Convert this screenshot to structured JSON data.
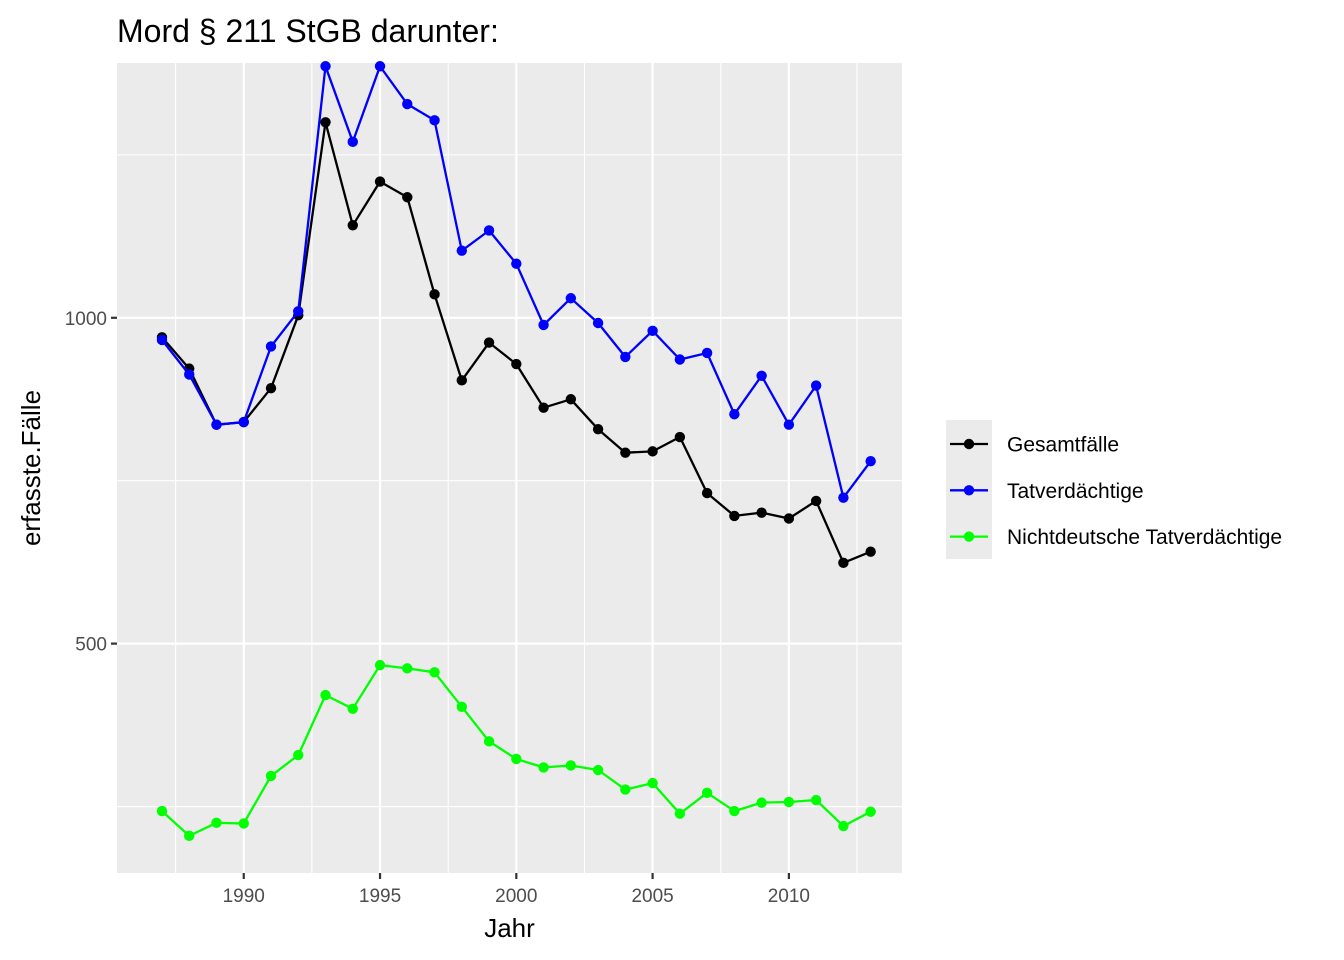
{
  "chart_data": {
    "type": "line",
    "title": "Mord § 211 StGB darunter:",
    "xlabel": "Jahr",
    "ylabel": "erfasste.Fälle",
    "x": [
      1987,
      1988,
      1989,
      1990,
      1991,
      1992,
      1993,
      1994,
      1995,
      1996,
      1997,
      1998,
      1999,
      2000,
      2001,
      2002,
      2003,
      2004,
      2005,
      2006,
      2007,
      2008,
      2009,
      2010,
      2011,
      2012,
      2013
    ],
    "xlim": [
      1985.35,
      2014.15
    ],
    "ylim": [
      148,
      1391
    ],
    "x_ticks": [
      1990,
      1995,
      2000,
      2005,
      2010
    ],
    "y_ticks": [
      500,
      1000
    ],
    "grid": true,
    "legend_position": "right",
    "series": [
      {
        "name": "Gesamtfälle",
        "color": "#000000",
        "values": [
          970,
          922,
          836,
          840,
          892,
          1004,
          1300,
          1142,
          1209,
          1185,
          1036,
          904,
          962,
          929,
          862,
          875,
          829,
          793,
          795,
          817,
          731,
          696,
          701,
          692,
          719,
          624,
          641
        ]
      },
      {
        "name": "Tatverdächtige",
        "color": "#0000ff",
        "values": [
          966,
          913,
          836,
          840,
          956,
          1010,
          1386,
          1270,
          1386,
          1328,
          1303,
          1103,
          1134,
          1083,
          989,
          1030,
          992,
          940,
          980,
          936,
          946,
          852,
          911,
          836,
          896,
          724,
          780
        ]
      },
      {
        "name": "Nichtdeutsche Tatverdächtige",
        "color": "#00ff00",
        "values": [
          243,
          205,
          225,
          224,
          297,
          329,
          421,
          400,
          467,
          462,
          456,
          403,
          350,
          323,
          310,
          313,
          306,
          276,
          286,
          239,
          271,
          243,
          256,
          257,
          260,
          220,
          242
        ]
      }
    ]
  }
}
